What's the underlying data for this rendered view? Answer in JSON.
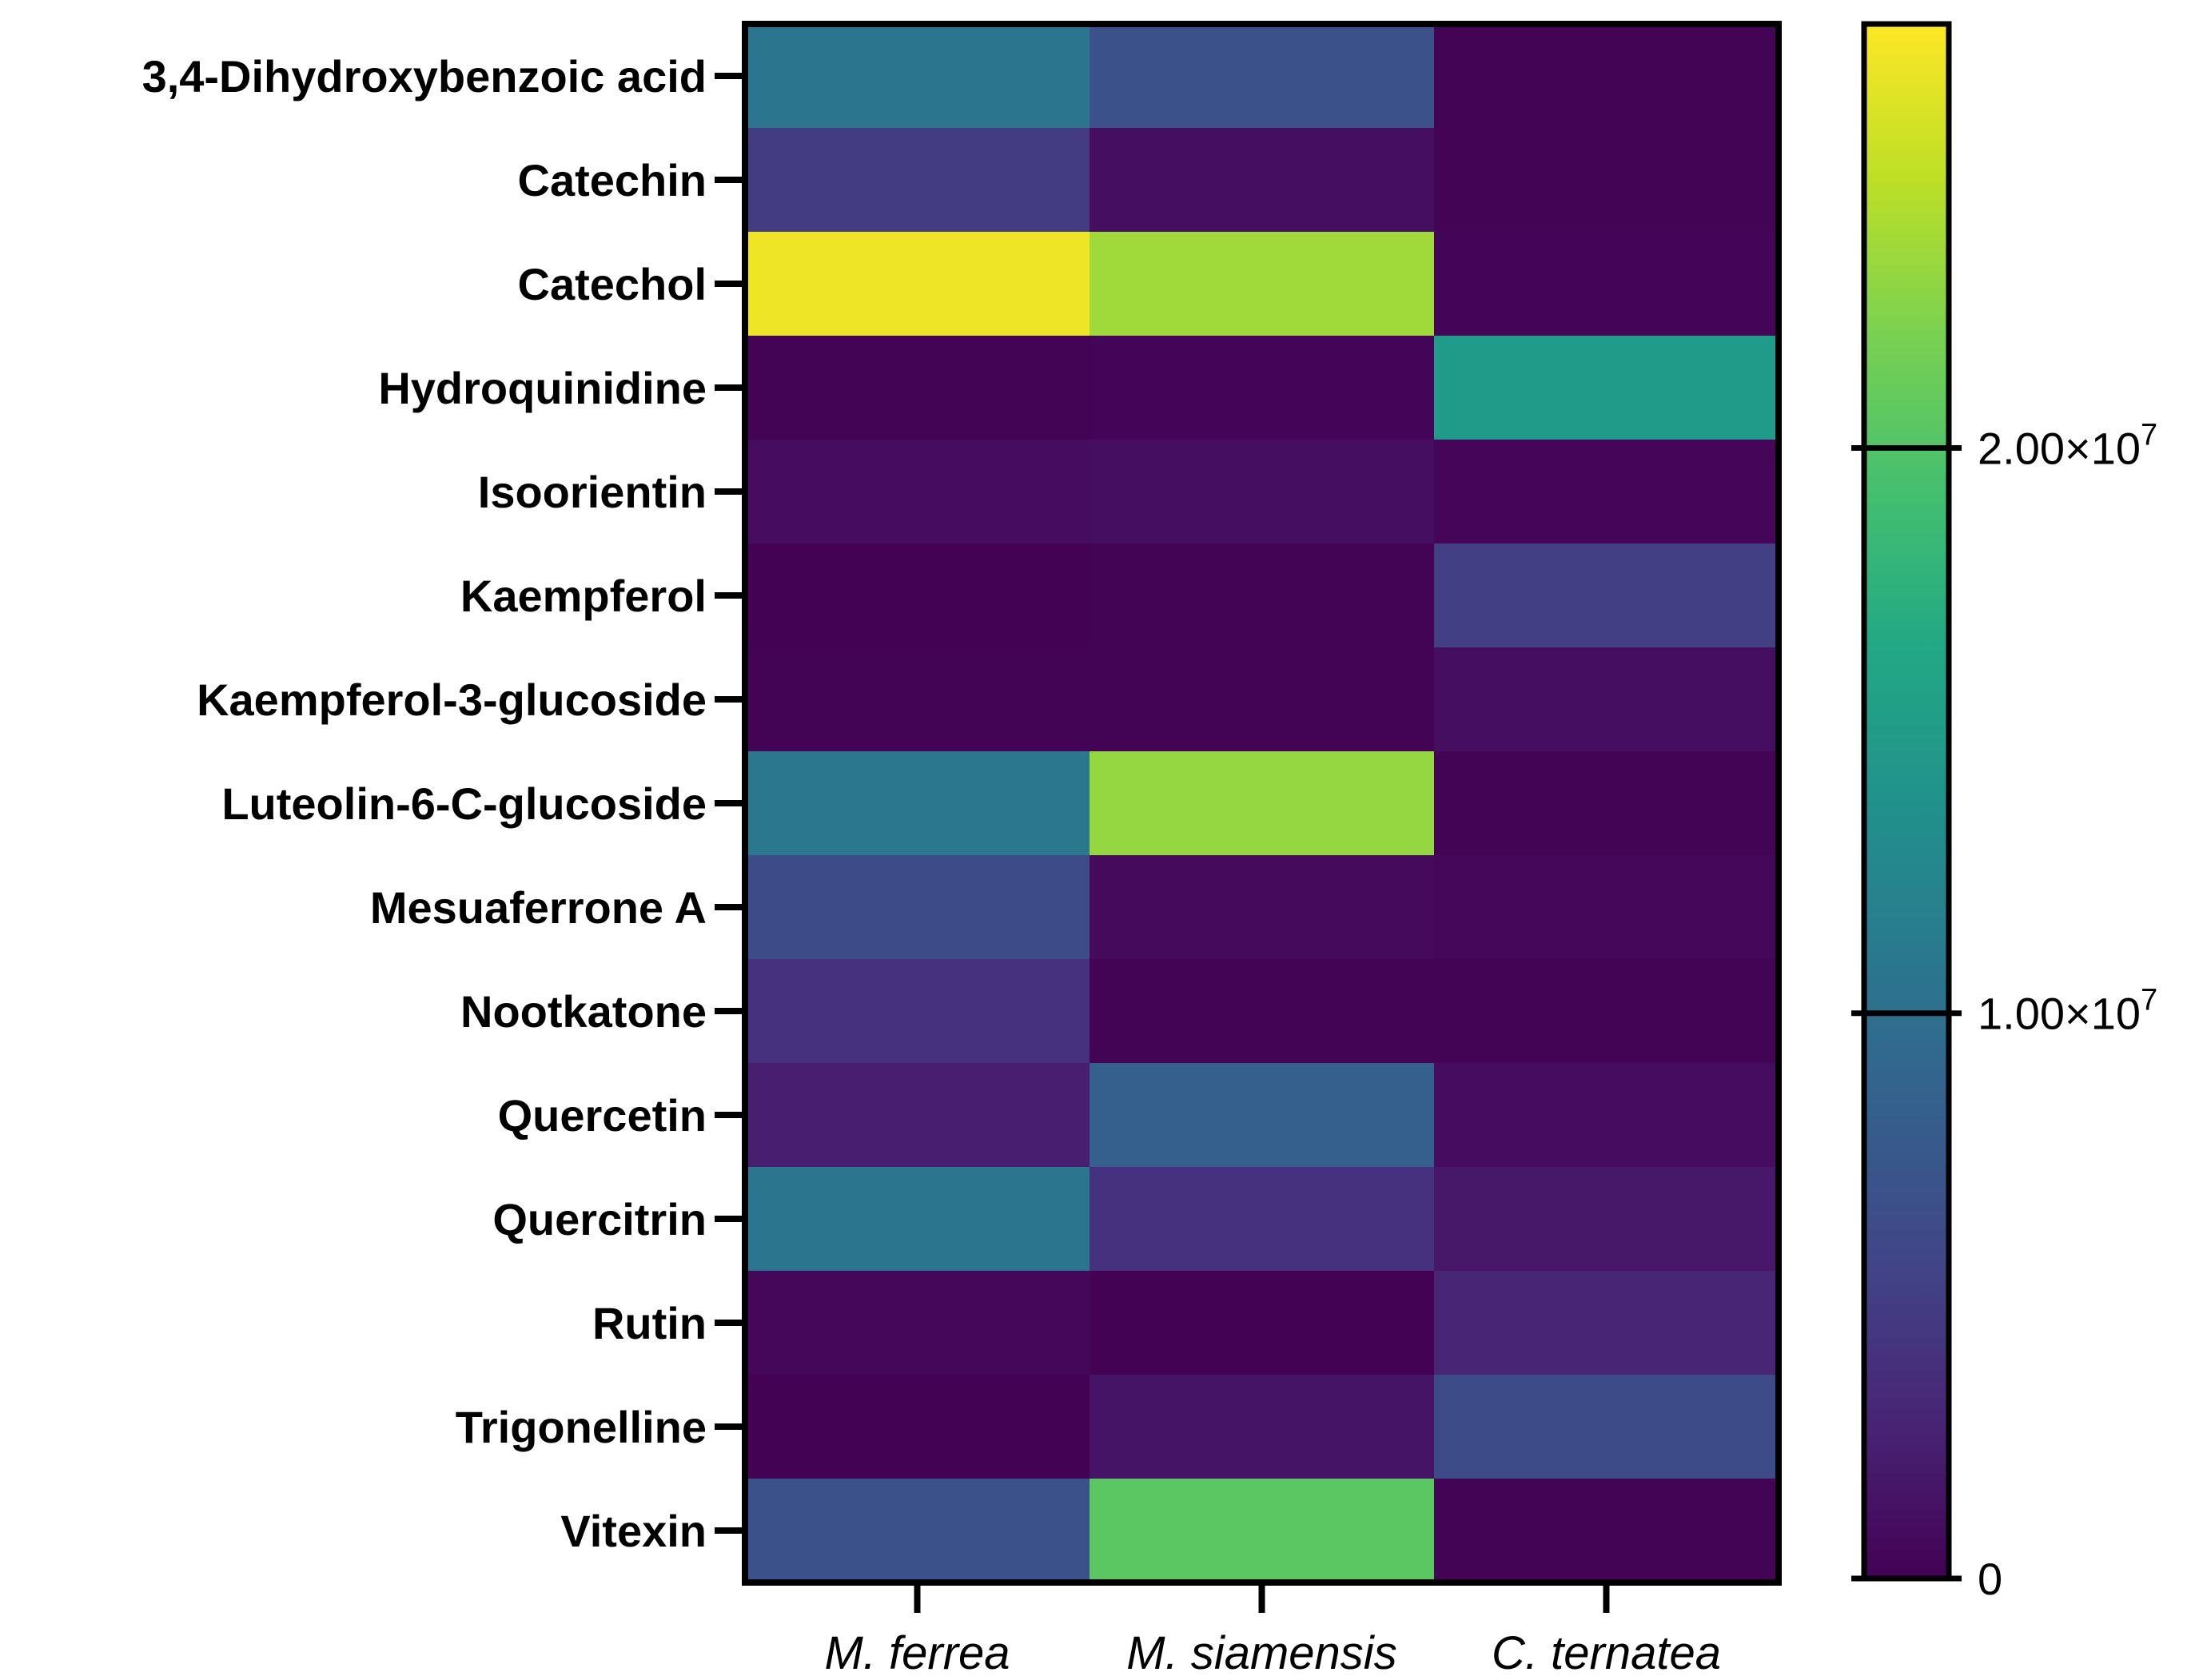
{
  "chart_data": {
    "type": "heatmap",
    "rows": [
      "3,4-Dihydroxybenzoic acid",
      "Catechin",
      "Catechol",
      "Hydroquinidine",
      "Isoorientin",
      "Kaempferol",
      "Kaempferol-3-glucoside",
      "Luteolin-6-C-glucoside",
      "Mesuaferrone A",
      "Nootkatone",
      "Quercetin",
      "Quercitrin",
      "Rutin",
      "Trigonelline",
      "Vitexin"
    ],
    "columns": [
      "M. ferrea",
      "M. siamensis",
      "C. ternatea"
    ],
    "values": [
      [
        10700000,
        6800000,
        200000
      ],
      [
        4800000,
        1000000,
        200000
      ],
      [
        26800000,
        23500000,
        300000
      ],
      [
        200000,
        300000,
        14900000
      ],
      [
        900000,
        1000000,
        400000
      ],
      [
        100000,
        200000,
        5100000
      ],
      [
        200000,
        200000,
        1000000
      ],
      [
        10900000,
        23100000,
        200000
      ],
      [
        6200000,
        700000,
        500000
      ],
      [
        3900000,
        200000,
        200000
      ],
      [
        2300000,
        8300000,
        900000
      ],
      [
        10800000,
        3900000,
        1800000
      ],
      [
        500000,
        100000,
        2800000
      ],
      [
        100000,
        1500000,
        6200000
      ],
      [
        6800000,
        20400000,
        200000
      ]
    ],
    "colorbar": {
      "colormap": "viridis",
      "min": 0,
      "max": 27500000,
      "ticks": [
        {
          "value": 0,
          "mantissa": "0",
          "exponent": ""
        },
        {
          "value": 10000000,
          "mantissa": "1.00×10",
          "exponent": "7"
        },
        {
          "value": 20000000,
          "mantissa": "2.00×10",
          "exponent": "7"
        }
      ]
    }
  }
}
